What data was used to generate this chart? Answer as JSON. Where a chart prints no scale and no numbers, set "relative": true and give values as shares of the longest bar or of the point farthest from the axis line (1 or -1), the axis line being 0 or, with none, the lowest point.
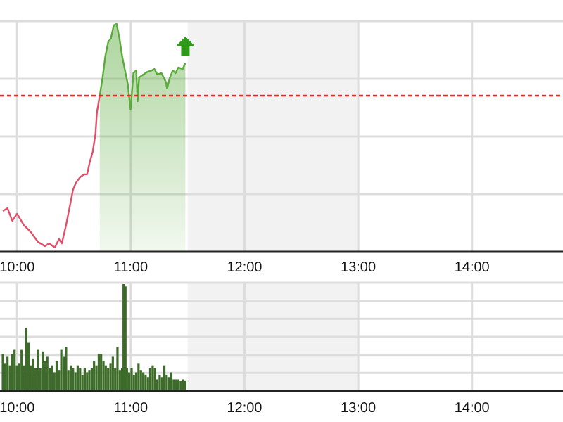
{
  "chart_data": [
    {
      "type": "line",
      "relative": true,
      "grid": true,
      "xlim": [
        9.85,
        14.8
      ],
      "xticks": [
        {
          "value": 10,
          "label": "10:00"
        },
        {
          "value": 11,
          "label": "11:00"
        },
        {
          "value": 12,
          "label": "12:00"
        },
        {
          "value": 13,
          "label": "13:00"
        },
        {
          "value": 14,
          "label": "14:00"
        }
      ],
      "bands": [
        {
          "axis": "x",
          "from": 11.5,
          "to": 13,
          "color": "#f2f2f2"
        }
      ],
      "ref_lines": [
        {
          "axis": "y",
          "value": 0.685,
          "color": "#ff2020",
          "line_style": "dashed"
        }
      ],
      "series": [
        {
          "color": "#e0506a",
          "x": [
            9.875,
            9.916,
            9.958,
            10.0,
            10.06,
            10.122,
            10.184,
            10.245,
            10.282,
            10.332,
            10.369,
            10.394,
            10.431,
            10.468,
            10.492,
            10.517,
            10.554,
            10.591,
            10.616,
            10.64,
            10.665,
            10.69,
            10.702,
            10.727
          ],
          "values": [
            0.179,
            0.191,
            0.136,
            0.167,
            0.117,
            0.086,
            0.043,
            0.025,
            0.037,
            0.019,
            0.056,
            0.037,
            0.117,
            0.21,
            0.272,
            0.302,
            0.327,
            0.34,
            0.34,
            0.395,
            0.438,
            0.519,
            0.611,
            0.685
          ]
        },
        {
          "type": "area",
          "color": "#5aab3c",
          "x": [
            10.727,
            10.752,
            10.776,
            10.801,
            10.826,
            10.85,
            10.875,
            10.9,
            10.924,
            10.949,
            10.974,
            10.998,
            11.023,
            11.048,
            11.06,
            11.073,
            11.11,
            11.147,
            11.184,
            11.208,
            11.233,
            11.27,
            11.307,
            11.319,
            11.344,
            11.369,
            11.393,
            11.418,
            11.455,
            11.48
          ],
          "values": [
            0.685,
            0.765,
            0.858,
            0.92,
            0.938,
            0.994,
            1.0,
            0.938,
            0.858,
            0.796,
            0.735,
            0.623,
            0.784,
            0.796,
            0.66,
            0.765,
            0.778,
            0.79,
            0.796,
            0.802,
            0.778,
            0.784,
            0.747,
            0.716,
            0.765,
            0.796,
            0.784,
            0.809,
            0.802,
            0.827
          ]
        }
      ]
    },
    {
      "type": "bar",
      "relative": true,
      "grid": true,
      "xlim": [
        9.85,
        14.8
      ],
      "xticks": [
        {
          "value": 10,
          "label": "10:00"
        },
        {
          "value": 11,
          "label": "11:00"
        },
        {
          "value": 12,
          "label": "12:00"
        },
        {
          "value": 13,
          "label": "13:00"
        },
        {
          "value": 14,
          "label": "14:00"
        }
      ],
      "bands": [
        {
          "axis": "x",
          "from": 11.5,
          "to": 13,
          "color": "#f2f2f2"
        }
      ],
      "series": [
        {
          "color": "#3d6b2a",
          "x": [
            9.875,
            9.896,
            9.916,
            9.937,
            9.957,
            9.978,
            9.998,
            10.019,
            10.04,
            10.06,
            10.081,
            10.101,
            10.122,
            10.142,
            10.163,
            10.184,
            10.204,
            10.225,
            10.245,
            10.266,
            10.287,
            10.307,
            10.328,
            10.348,
            10.369,
            10.389,
            10.41,
            10.431,
            10.451,
            10.472,
            10.492,
            10.513,
            10.533,
            10.554,
            10.575,
            10.595,
            10.616,
            10.636,
            10.657,
            10.677,
            10.698,
            10.719,
            10.739,
            10.76,
            10.78,
            10.801,
            10.822,
            10.842,
            10.863,
            10.883,
            10.904,
            10.924,
            10.937,
            10.953,
            10.966,
            10.986,
            11.007,
            11.027,
            11.048,
            11.068,
            11.089,
            11.11,
            11.13,
            11.151,
            11.171,
            11.192,
            11.212,
            11.233,
            11.254,
            11.274,
            11.295,
            11.315,
            11.336,
            11.356,
            11.377,
            11.398,
            11.418,
            11.439,
            11.459,
            11.48
          ],
          "values": [
            0.348,
            0.261,
            0.326,
            0.239,
            0.348,
            0.391,
            0.239,
            0.261,
            0.391,
            0.239,
            0.587,
            0.457,
            0.239,
            0.304,
            0.217,
            0.391,
            0.217,
            0.37,
            0.283,
            0.326,
            0.217,
            0.239,
            0.174,
            0.283,
            0.196,
            0.391,
            0.326,
            0.413,
            0.196,
            0.239,
            0.217,
            0.174,
            0.239,
            0.217,
            0.152,
            0.217,
            0.174,
            0.196,
            0.217,
            0.283,
            0.239,
            0.348,
            0.348,
            0.283,
            0.239,
            0.217,
            0.261,
            0.326,
            0.217,
            0.413,
            0.196,
            0.217,
            1.0,
            0.978,
            0.217,
            0.174,
            0.217,
            0.152,
            0.174,
            0.261,
            0.196,
            0.174,
            0.152,
            0.13,
            0.217,
            0.239,
            0.217,
            0.109,
            0.152,
            0.13,
            0.239,
            0.152,
            0.13,
            0.174,
            0.109,
            0.109,
            0.109,
            0.096,
            0.109,
            0.1
          ]
        }
      ]
    }
  ]
}
